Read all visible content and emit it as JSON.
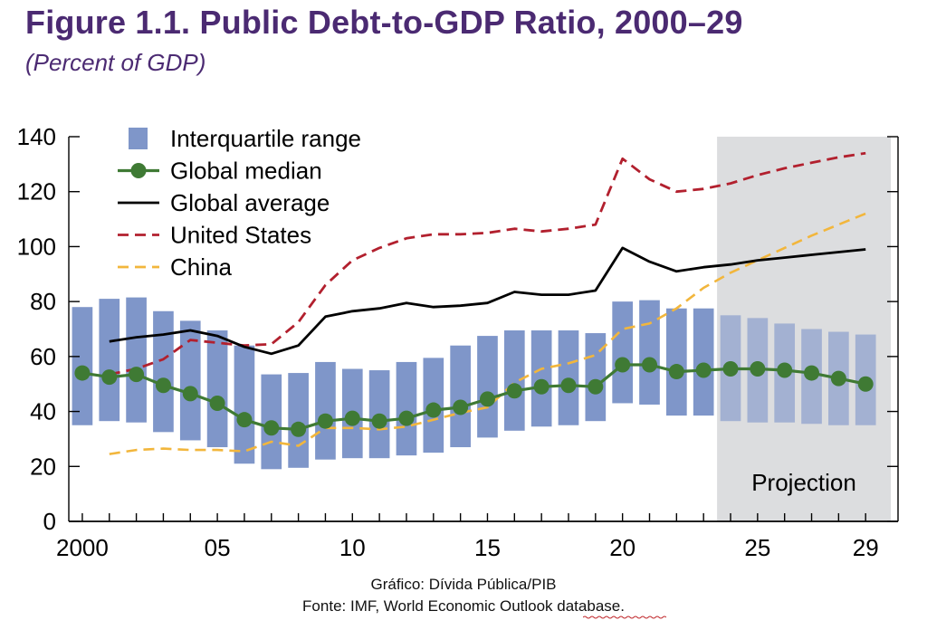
{
  "title": "Figure 1.1. Public Debt-to-GDP Ratio, 2000–29",
  "subtitle": "(Percent of GDP)",
  "caption_line1": "Gráfico: Dívida Pública/PIB",
  "caption_line2": "Fonte: IMF, World Economic Outlook database.",
  "chart_data": {
    "type": "line",
    "title": "Figure 1.1. Public Debt-to-GDP Ratio, 2000–29",
    "subtitle": "(Percent of GDP)",
    "ylim": [
      0,
      140
    ],
    "xlim": [
      1999.5,
      2030.2
    ],
    "y_ticks": [
      0,
      20,
      40,
      60,
      80,
      100,
      120,
      140
    ],
    "x_ticks": [
      {
        "x": 2000,
        "label": "2000"
      },
      {
        "x": 2005,
        "label": "05"
      },
      {
        "x": 2010,
        "label": "10"
      },
      {
        "x": 2015,
        "label": "15"
      },
      {
        "x": 2020,
        "label": "20"
      },
      {
        "x": 2025,
        "label": "25"
      },
      {
        "x": 2029,
        "label": "29"
      }
    ],
    "projection_start": 2023.5,
    "projection_label": "Projection",
    "legend_position": "top-left",
    "colors": {
      "iqr": "#7f96c9",
      "median": "#3f7a34",
      "average": "#000000",
      "us": "#b2202e",
      "china": "#f2b63c",
      "projection_bg": "#dcdddf",
      "title": "#4b2a72"
    },
    "series": [
      {
        "name": "Interquartile range",
        "kind": "range",
        "x": [
          2000,
          2001,
          2002,
          2003,
          2004,
          2005,
          2006,
          2007,
          2008,
          2009,
          2010,
          2011,
          2012,
          2013,
          2014,
          2015,
          2016,
          2017,
          2018,
          2019,
          2020,
          2021,
          2022,
          2023,
          2024,
          2025,
          2026,
          2027,
          2028,
          2029
        ],
        "low": [
          35,
          36.5,
          36,
          32.5,
          29.5,
          27,
          21,
          19,
          19.5,
          22.5,
          23,
          23,
          24,
          25,
          27,
          30.5,
          33,
          34.5,
          35,
          36.5,
          43,
          42.5,
          38.5,
          38.5,
          36.5,
          36,
          36,
          35.5,
          35,
          35
        ],
        "high": [
          78,
          81,
          81.5,
          76.5,
          73,
          69.5,
          64,
          53.5,
          54,
          58,
          55.5,
          55,
          58,
          59.5,
          64,
          67.5,
          69.5,
          69.5,
          69.5,
          68.5,
          80,
          80.5,
          77.5,
          77.5,
          75,
          74,
          72,
          70,
          69,
          68
        ]
      },
      {
        "name": "Global median",
        "kind": "line-markers",
        "x": [
          2000,
          2001,
          2002,
          2003,
          2004,
          2005,
          2006,
          2007,
          2008,
          2009,
          2010,
          2011,
          2012,
          2013,
          2014,
          2015,
          2016,
          2017,
          2018,
          2019,
          2020,
          2021,
          2022,
          2023,
          2024,
          2025,
          2026,
          2027,
          2028,
          2029
        ],
        "y": [
          54,
          52.5,
          53.5,
          49.5,
          46.5,
          43,
          37,
          34,
          33.5,
          36.5,
          37.5,
          36.5,
          37.5,
          40.5,
          41.5,
          44.5,
          47.5,
          49,
          49.5,
          49,
          57,
          57,
          54.5,
          55,
          55.5,
          55.5,
          55,
          54,
          52,
          50
        ]
      },
      {
        "name": "Global average",
        "kind": "line",
        "x": [
          2001,
          2002,
          2003,
          2004,
          2005,
          2006,
          2007,
          2008,
          2009,
          2010,
          2011,
          2012,
          2013,
          2014,
          2015,
          2016,
          2017,
          2018,
          2019,
          2020,
          2021,
          2022,
          2023,
          2024,
          2025,
          2026,
          2027,
          2028,
          2029
        ],
        "y": [
          65.5,
          67,
          68,
          69.5,
          67.5,
          63.5,
          61,
          64,
          74.5,
          76.5,
          77.5,
          79.5,
          78,
          78.5,
          79.5,
          83.5,
          82.5,
          82.5,
          84,
          99.5,
          94.5,
          91,
          92.5,
          93.5,
          95,
          96,
          97,
          98,
          99
        ]
      },
      {
        "name": "United States",
        "kind": "dashed",
        "x": [
          2001,
          2002,
          2003,
          2004,
          2005,
          2006,
          2007,
          2008,
          2009,
          2010,
          2011,
          2012,
          2013,
          2014,
          2015,
          2016,
          2017,
          2018,
          2019,
          2020,
          2021,
          2022,
          2023,
          2024,
          2025,
          2026,
          2027,
          2028,
          2029
        ],
        "y": [
          53.5,
          55.5,
          59,
          66,
          65,
          64,
          64.5,
          72.5,
          86,
          95,
          99.5,
          103,
          104.5,
          104.5,
          105,
          106.5,
          105.5,
          106.5,
          108,
          132,
          124.5,
          120,
          121,
          123,
          126,
          128.5,
          130.5,
          132.5,
          134
        ]
      },
      {
        "name": "China",
        "kind": "dashed",
        "x": [
          2001,
          2002,
          2003,
          2004,
          2005,
          2006,
          2007,
          2008,
          2009,
          2010,
          2011,
          2012,
          2013,
          2014,
          2015,
          2016,
          2017,
          2018,
          2019,
          2020,
          2021,
          2022,
          2023,
          2024,
          2025,
          2026,
          2027,
          2028,
          2029
        ],
        "y": [
          24.5,
          26,
          26.5,
          26,
          26,
          25.5,
          29,
          27.5,
          34,
          34,
          33.5,
          34.5,
          37,
          39.5,
          41.5,
          50.5,
          55.5,
          57.5,
          60.5,
          70,
          72,
          77.5,
          85,
          90.5,
          95,
          99.5,
          104,
          108,
          112
        ]
      }
    ]
  }
}
